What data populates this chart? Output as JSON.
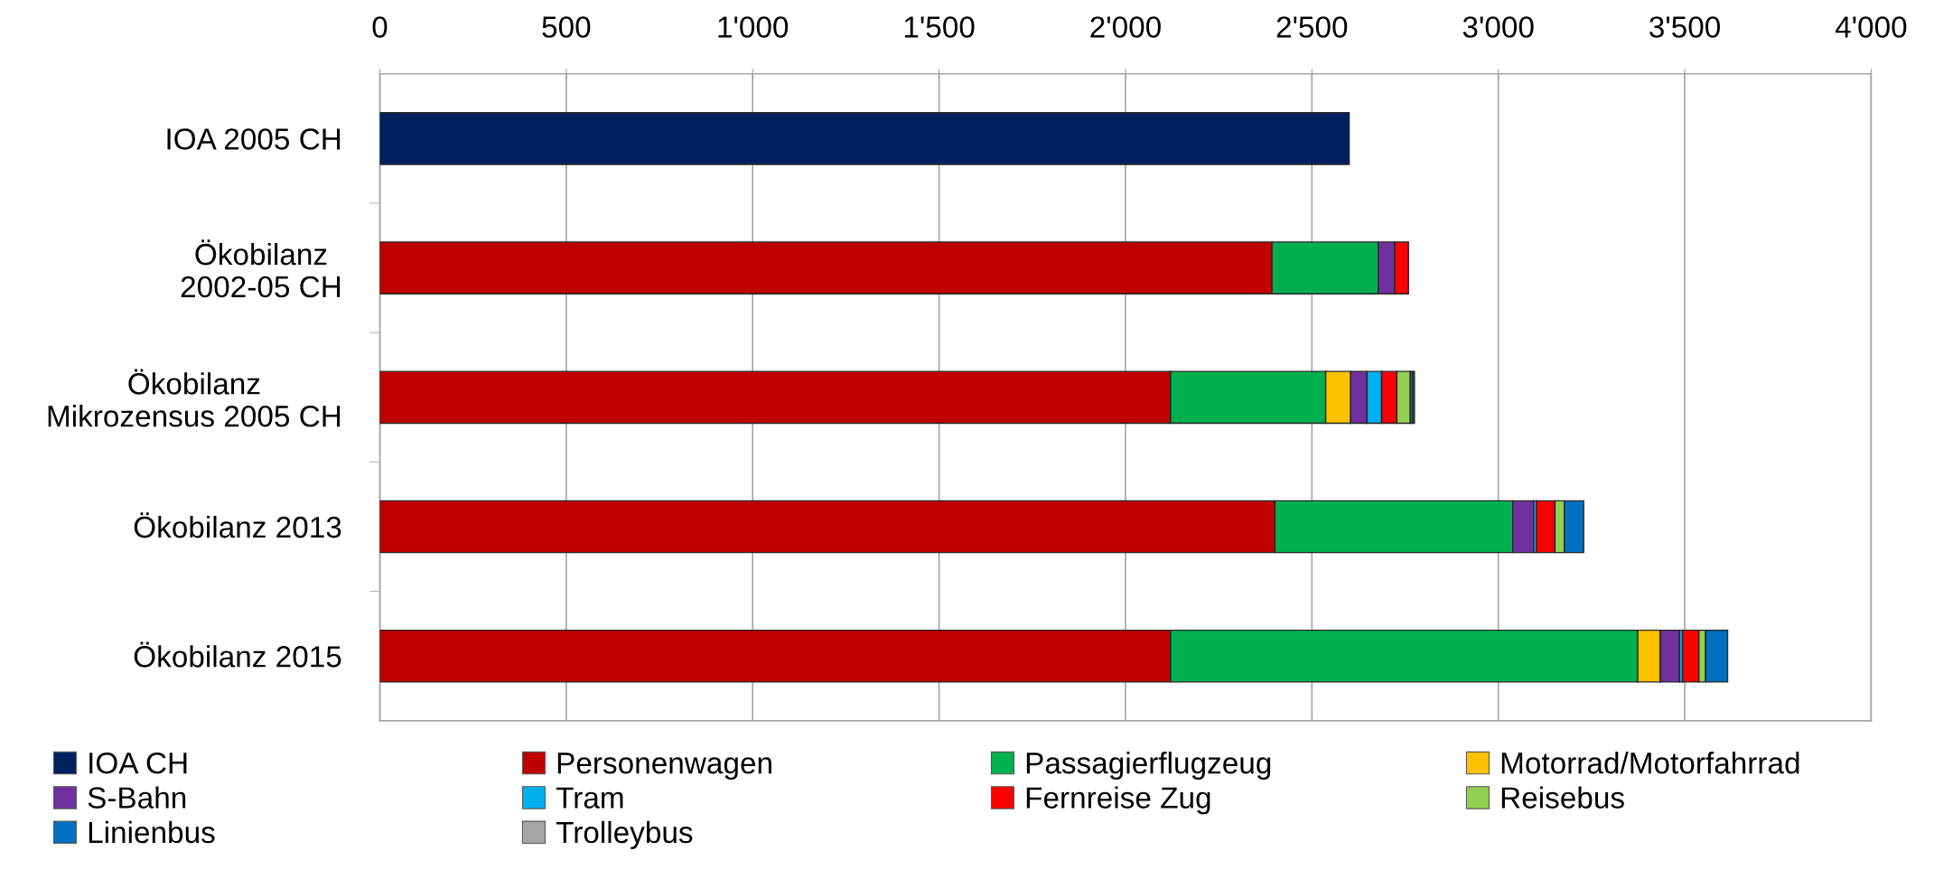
{
  "chart_data": {
    "type": "bar",
    "orientation": "horizontal",
    "stacked": true,
    "categories": [
      "IOA 2005 CH",
      "Ökobilanz\n2002-05 CH",
      "Ökobilanz\nMikrozensus 2005 CH",
      "Ökobilanz 2013",
      "Ökobilanz 2015"
    ],
    "series": [
      {
        "name": "IOA CH",
        "color": "#002060",
        "values": [
          2600,
          null,
          null,
          null,
          null
        ]
      },
      {
        "name": "Personenwagen",
        "color": "#c00000",
        "values": [
          null,
          2393,
          2121,
          2401,
          2121
        ]
      },
      {
        "name": "Passagierflugzeug",
        "color": "#00b050",
        "values": [
          null,
          285,
          416,
          638,
          1253
        ]
      },
      {
        "name": "Motorrad/Motorfahrrad",
        "color": "#ffc000",
        "values": [
          null,
          null,
          67,
          null,
          60
        ]
      },
      {
        "name": "S-Bahn",
        "color": "#7030a0",
        "values": [
          null,
          44,
          44,
          56,
          52
        ]
      },
      {
        "name": "Tram",
        "color": "#00b0f0",
        "values": [
          null,
          null,
          39,
          7,
          8
        ]
      },
      {
        "name": "Fernreise Zug",
        "color": "#ff0000",
        "values": [
          null,
          37,
          41,
          50,
          44
        ]
      },
      {
        "name": "Reisebus",
        "color": "#92d050",
        "values": [
          null,
          null,
          36,
          25,
          18
        ]
      },
      {
        "name": "Linienbus",
        "color": "#0070c0",
        "values": [
          null,
          null,
          7,
          52,
          59
        ]
      },
      {
        "name": "Trolleybus",
        "color": "#a5a5a5",
        "values": [
          null,
          null,
          4,
          null,
          null
        ]
      }
    ],
    "xlim": [
      0,
      4000
    ],
    "xticks": [
      0,
      500,
      {
        "value": 1000,
        "label": "1'000"
      },
      {
        "value": 1500,
        "label": "1'500"
      },
      {
        "value": 2000,
        "label": "2'000"
      },
      {
        "value": 2500,
        "label": "2'500"
      },
      {
        "value": 3000,
        "label": "3'000"
      },
      {
        "value": 3500,
        "label": "3'500"
      },
      {
        "value": 4000,
        "label": "4'000"
      }
    ],
    "grid": "x",
    "legend": "bottom"
  }
}
